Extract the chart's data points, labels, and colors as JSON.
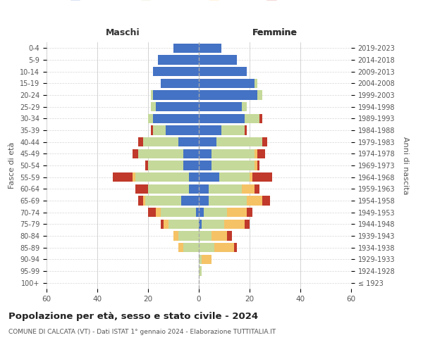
{
  "age_groups": [
    "100+",
    "95-99",
    "90-94",
    "85-89",
    "80-84",
    "75-79",
    "70-74",
    "65-69",
    "60-64",
    "55-59",
    "50-54",
    "45-49",
    "40-44",
    "35-39",
    "30-34",
    "25-29",
    "20-24",
    "15-19",
    "10-14",
    "5-9",
    "0-4"
  ],
  "birth_years": [
    "≤ 1923",
    "1924-1928",
    "1929-1933",
    "1934-1938",
    "1939-1943",
    "1944-1948",
    "1949-1953",
    "1954-1958",
    "1959-1963",
    "1964-1968",
    "1969-1973",
    "1974-1978",
    "1979-1983",
    "1984-1988",
    "1989-1993",
    "1994-1998",
    "1999-2003",
    "2004-2008",
    "2009-2013",
    "2014-2018",
    "2019-2023"
  ],
  "male": {
    "celibi": [
      0,
      0,
      0,
      0,
      0,
      0,
      1,
      7,
      4,
      4,
      6,
      6,
      8,
      13,
      18,
      17,
      18,
      15,
      18,
      16,
      10
    ],
    "coniugati": [
      0,
      0,
      0,
      6,
      8,
      12,
      14,
      14,
      16,
      21,
      14,
      18,
      14,
      5,
      2,
      2,
      1,
      0,
      0,
      0,
      0
    ],
    "vedovi": [
      0,
      0,
      0,
      2,
      2,
      2,
      2,
      1,
      0,
      1,
      0,
      0,
      0,
      0,
      0,
      0,
      0,
      0,
      0,
      0,
      0
    ],
    "divorziati": [
      0,
      0,
      0,
      0,
      0,
      1,
      3,
      2,
      5,
      8,
      1,
      2,
      2,
      1,
      0,
      0,
      0,
      0,
      0,
      0,
      0
    ]
  },
  "female": {
    "nubili": [
      0,
      0,
      0,
      0,
      0,
      1,
      2,
      4,
      4,
      8,
      5,
      5,
      7,
      9,
      18,
      17,
      23,
      22,
      19,
      15,
      9
    ],
    "coniugate": [
      0,
      1,
      1,
      6,
      5,
      9,
      9,
      15,
      13,
      12,
      17,
      17,
      18,
      9,
      6,
      2,
      2,
      1,
      0,
      0,
      0
    ],
    "vedove": [
      0,
      0,
      4,
      8,
      6,
      8,
      8,
      6,
      5,
      1,
      1,
      1,
      0,
      0,
      0,
      0,
      0,
      0,
      0,
      0,
      0
    ],
    "divorziate": [
      0,
      0,
      0,
      1,
      2,
      2,
      2,
      3,
      2,
      8,
      1,
      3,
      2,
      1,
      1,
      0,
      0,
      0,
      0,
      0,
      0
    ]
  },
  "colors": {
    "celibi": "#4472C4",
    "coniugati": "#C5D99A",
    "vedovi": "#F5C266",
    "divorziati": "#C0392B"
  },
  "title": "Popolazione per età, sesso e stato civile - 2024",
  "subtitle": "COMUNE DI CALCATA (VT) - Dati ISTAT 1° gennaio 2024 - Elaborazione TUTTITALIA.IT",
  "xlabel_left": "Maschi",
  "xlabel_right": "Femmine",
  "ylabel_left": "Fasce di età",
  "ylabel_right": "Anni di nascita",
  "xlim": 60,
  "bg_color": "#ffffff",
  "grid_color": "#cccccc"
}
